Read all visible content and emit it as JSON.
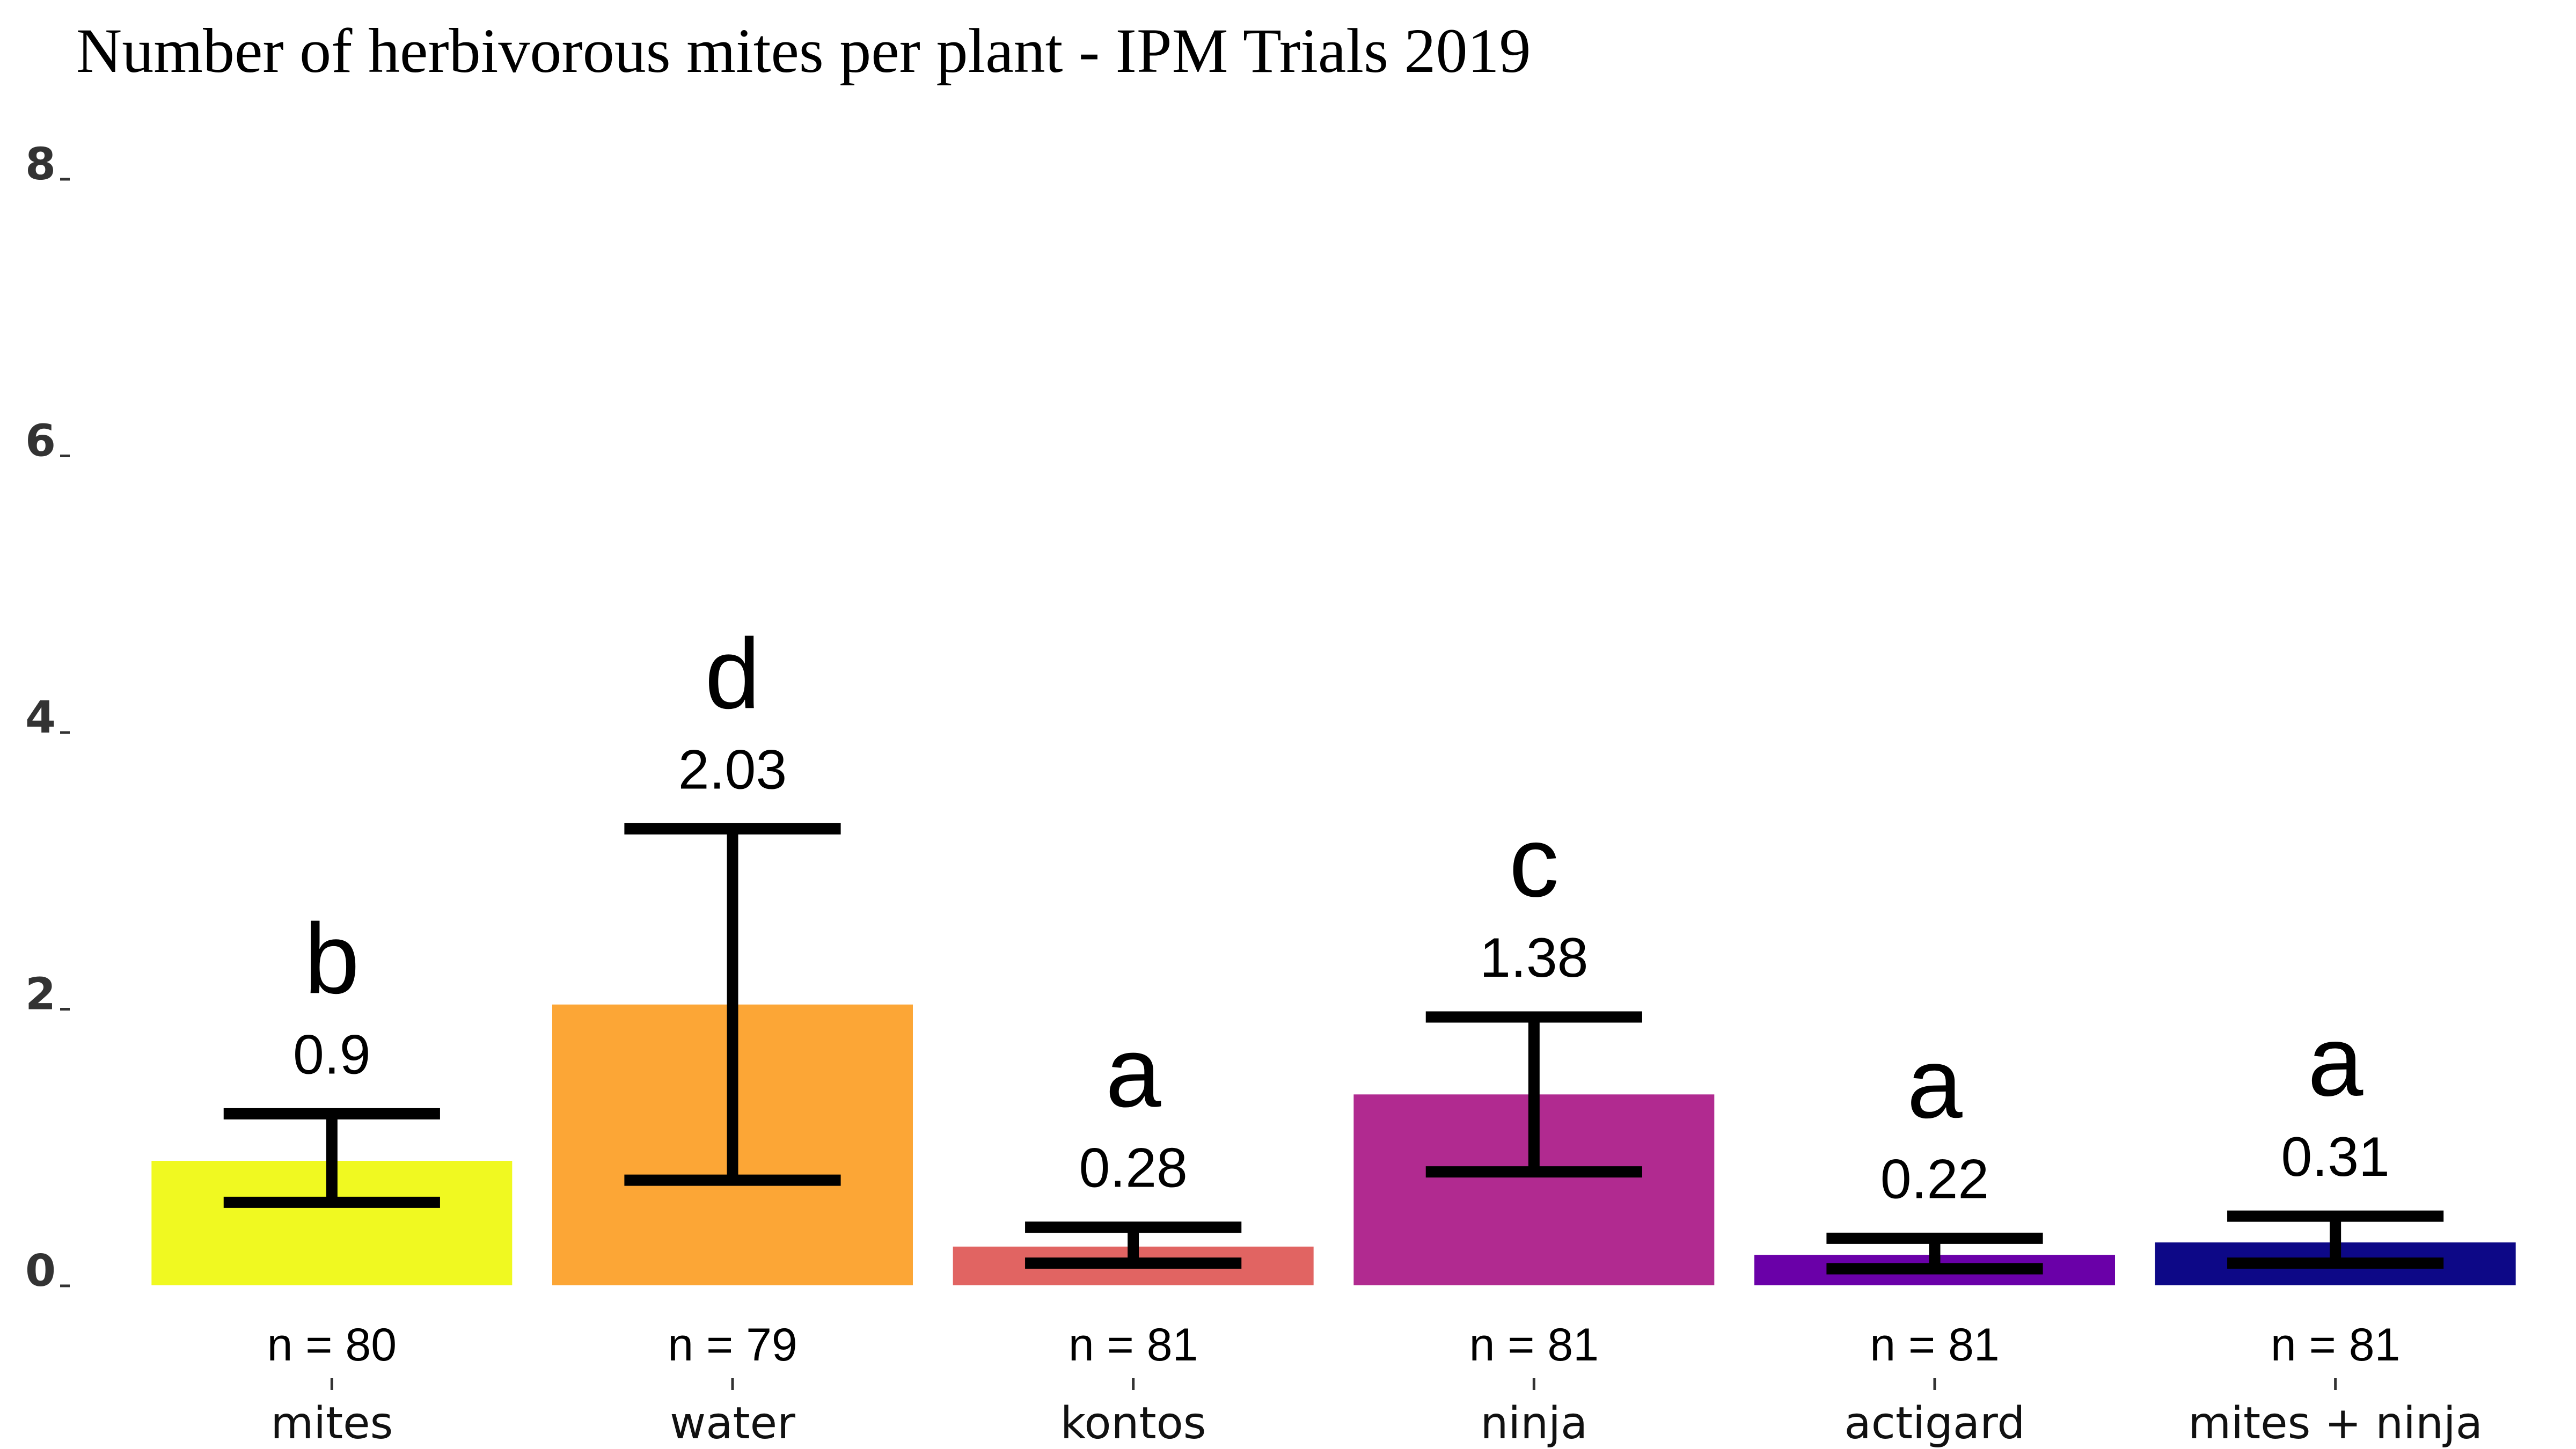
{
  "chart_data": {
    "type": "bar",
    "title": "Number of herbivorous mites per plant - IPM Trials 2019",
    "xlabel": "",
    "ylabel": "",
    "ylim": [
      0,
      8
    ],
    "y_ticks": [
      0,
      2,
      4,
      6,
      8
    ],
    "grid": false,
    "legend": "none",
    "categories": [
      "mites",
      "water",
      "kontos",
      "ninja",
      "actigard",
      "mites + ninja"
    ],
    "values": [
      0.9,
      2.03,
      0.28,
      1.38,
      0.22,
      0.31
    ],
    "value_labels": [
      "0.9",
      "2.03",
      "0.28",
      "1.38",
      "0.22",
      "0.31"
    ],
    "error_low": [
      0.6,
      0.76,
      0.16,
      0.82,
      0.12,
      0.16
    ],
    "error_high": [
      1.24,
      3.3,
      0.42,
      1.94,
      0.34,
      0.5
    ],
    "significance_groups": [
      "b",
      "d",
      "a",
      "c",
      "a",
      "a"
    ],
    "n_labels": [
      "n = 80",
      "n = 79",
      "n = 81",
      "n = 81",
      "n = 81",
      "n = 81"
    ],
    "colors": [
      "#f0f921",
      "#fca636",
      "#e16462",
      "#b12a90",
      "#6a00a8",
      "#0d0887"
    ]
  }
}
